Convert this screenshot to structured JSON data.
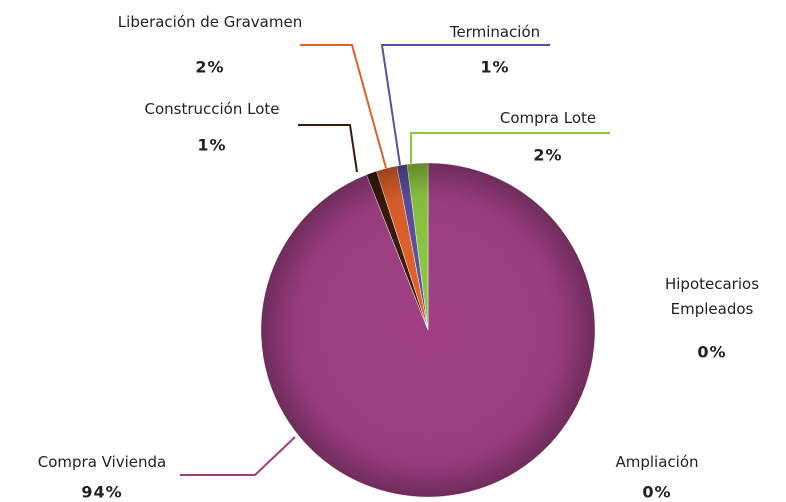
{
  "chart_data": {
    "type": "pie",
    "categories": [
      "Hipotecarios Empleados",
      "Ampliación",
      "Compra Vivienda",
      "Construcción Lote",
      "Liberación de Gravamen",
      "Terminación",
      "Compra Lote"
    ],
    "values": [
      0,
      0,
      94,
      1,
      2,
      1,
      2
    ],
    "value_labels": [
      "0%",
      "0%",
      "94%",
      "1%",
      "2%",
      "1%",
      "2%"
    ],
    "colors": [
      "#7f7f7f",
      "#4f81bd",
      "#9e3f82",
      "#3a1a0a",
      "#e0602a",
      "#5a4fa0",
      "#8cc63f"
    ]
  }
}
